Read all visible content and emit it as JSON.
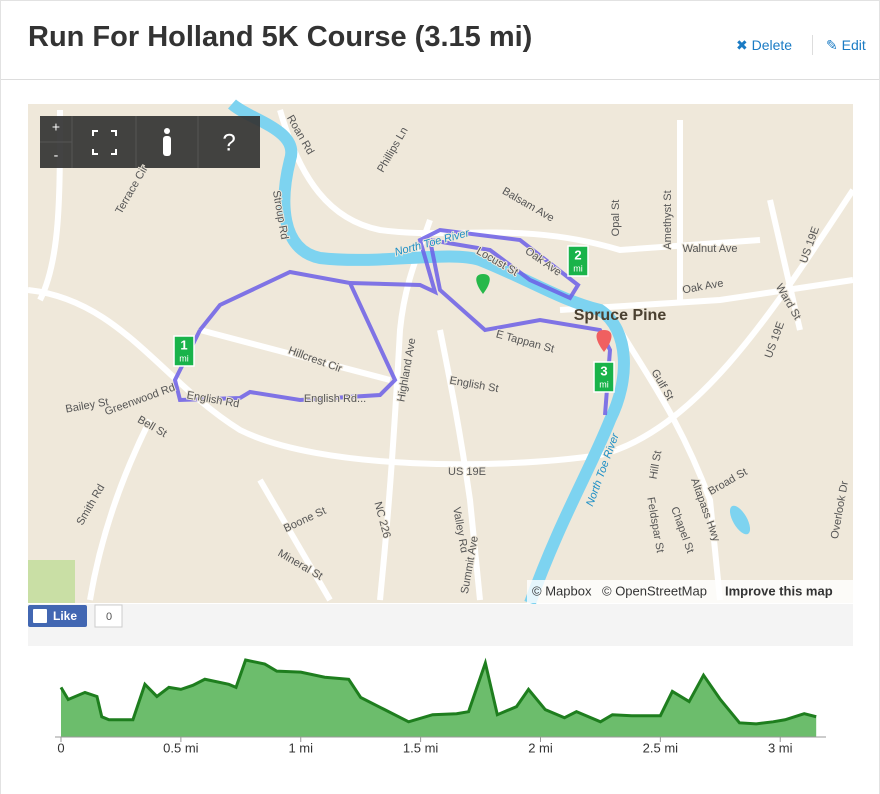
{
  "header": {
    "title": "Run For Holland 5K Course (3.15 mi)",
    "actions": [
      "Delete",
      "Edit"
    ]
  },
  "map": {
    "controls": [
      "+",
      "-",
      "?"
    ],
    "labels": [
      "Spruce Pine",
      "North Toe River",
      "North Toe River",
      "Balsam Ave",
      "Locust St",
      "Oak Ave",
      "Oak Ave",
      "Walnut Ave",
      "Opal St",
      "Amethyst St",
      "US 19E",
      "US 19E",
      "US 19E",
      "Ward St",
      "Gulf St",
      "E Tappan St",
      "English St",
      "Highland Ave",
      "Hillcrest Cir",
      "English Rd",
      "English Rd...",
      "Greenwood Rd",
      "Bailey St",
      "Bell St",
      "Smith Rd",
      "Boone St",
      "Mineral St",
      "NC 226",
      "Valley Rd",
      "Summit Ave",
      "Hill St",
      "Feldspar St",
      "Chapel St",
      "Altapass Hwy",
      "Broad St",
      "Overlook Dr",
      "Roan Rd",
      "Phillips Ln",
      "Stroup Rd",
      "Terrace Cir"
    ],
    "markers": [
      {
        "number": "1",
        "unit": "mi"
      },
      {
        "number": "2",
        "unit": "mi"
      },
      {
        "number": "3",
        "unit": "mi"
      }
    ],
    "attribution": [
      "© Mapbox",
      "© OpenStreetMap",
      "Improve this map"
    ]
  },
  "social": {
    "like": "Like",
    "count": 0
  },
  "chart_data": {
    "type": "area",
    "color": "#6cbd6c",
    "line_color": "#1e7e1e",
    "x": [
      0,
      0.03,
      0.1,
      0.15,
      0.17,
      0.2,
      0.3,
      0.35,
      0.4,
      0.45,
      0.5,
      0.55,
      0.6,
      0.7,
      0.73,
      0.77,
      0.85,
      0.9,
      1.0,
      1.1,
      1.2,
      1.25,
      1.35,
      1.45,
      1.55,
      1.65,
      1.7,
      1.77,
      1.82,
      1.9,
      1.95,
      2.02,
      2.1,
      2.15,
      2.25,
      2.3,
      2.38,
      2.5,
      2.55,
      2.62,
      2.68,
      2.75,
      2.83,
      2.9,
      2.97,
      3.02,
      3.1,
      3.15
    ],
    "values": [
      49,
      37,
      44,
      40,
      20,
      17,
      17,
      52,
      40,
      49,
      47,
      51,
      57,
      52,
      49,
      76,
      72,
      65,
      64,
      59,
      57,
      39,
      27,
      15,
      22,
      23,
      25,
      73,
      22,
      30,
      47,
      27,
      19,
      25,
      15,
      22,
      21,
      21,
      45,
      35,
      61,
      37,
      14,
      13,
      15,
      17,
      23,
      20
    ],
    "xlim": [
      0,
      3.17
    ],
    "xticks": [
      0,
      {
        "value": 0.5,
        "label": "0.5 mi"
      },
      {
        "value": 1,
        "label": "1 mi"
      },
      {
        "value": 1.5,
        "label": "1.5 mi"
      },
      {
        "value": 2,
        "label": "2 mi"
      },
      {
        "value": 2.5,
        "label": "2.5 mi"
      },
      {
        "value": 3,
        "label": "3 mi"
      }
    ]
  }
}
